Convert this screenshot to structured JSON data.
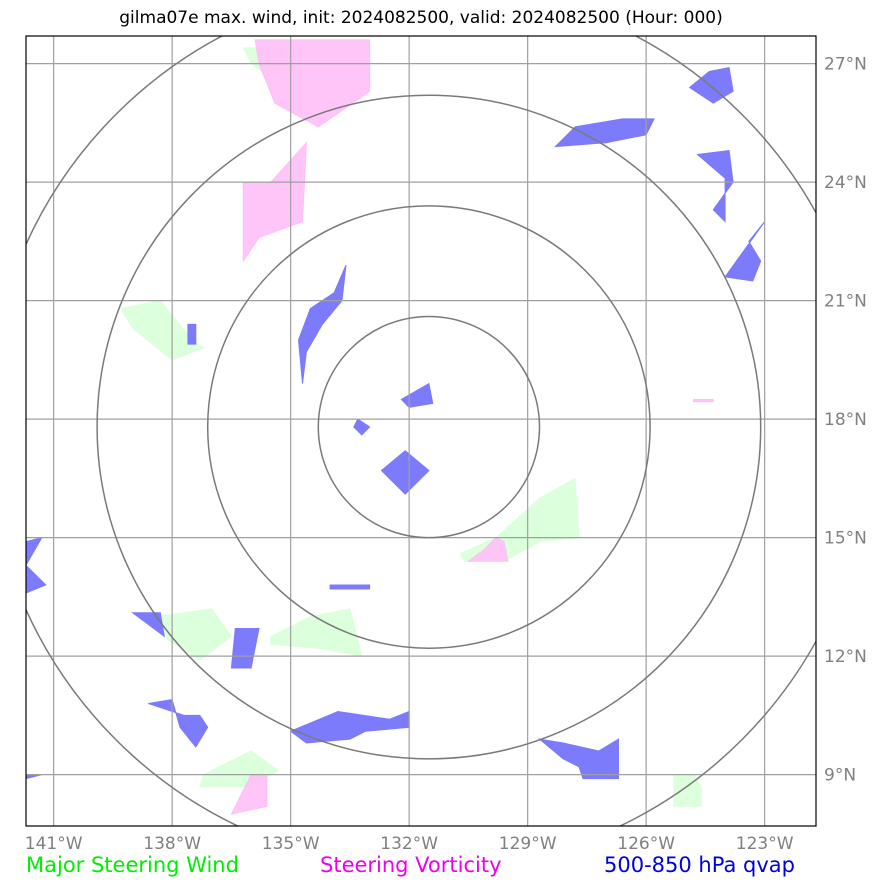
{
  "title": "gilma07e max. wind, init: 2024082500, valid: 2024082500 (Hour: 000)",
  "map": {
    "lon_range": [
      -141.7,
      -121.7
    ],
    "lat_range": [
      7.7,
      27.7
    ],
    "lon_ticks": [
      -141,
      -138,
      -135,
      -132,
      -129,
      -126,
      -123
    ],
    "lon_tick_labels": [
      "141°W",
      "138°W",
      "135°W",
      "132°W",
      "129°W",
      "126°W",
      "123°W"
    ],
    "lat_ticks": [
      9,
      12,
      15,
      18,
      21,
      24,
      27
    ],
    "lat_tick_labels": [
      "9°N",
      "12°N",
      "15°N",
      "18°N",
      "21°N",
      "24°N",
      "27°N"
    ],
    "range_ring_center": {
      "lon": -131.5,
      "lat": 17.8
    },
    "range_ring_radii_deg": [
      2.8,
      5.6,
      8.4,
      11.2
    ],
    "colors": {
      "grid": "#a0a0a0",
      "ring": "#7a7a7a",
      "steering_wind": "#dcffdc",
      "vorticity": "#ffbff8",
      "qvap": "#7b7bfb"
    },
    "layers": {
      "steering_wind": [
        [
          [
            -139.3,
            20.8
          ],
          [
            -138.3,
            21.0
          ],
          [
            -137.5,
            20.0
          ],
          [
            -137.2,
            19.8
          ],
          [
            -138.0,
            19.5
          ],
          [
            -139.0,
            20.3
          ]
        ],
        [
          [
            -130.7,
            14.6
          ],
          [
            -129.8,
            15.0
          ],
          [
            -128.7,
            16.0
          ],
          [
            -127.8,
            16.5
          ],
          [
            -127.7,
            15.0
          ],
          [
            -128.7,
            14.9
          ],
          [
            -129.6,
            14.4
          ],
          [
            -130.6,
            14.4
          ]
        ],
        [
          [
            -135.5,
            12.5
          ],
          [
            -134.5,
            13.0
          ],
          [
            -133.5,
            13.2
          ],
          [
            -133.2,
            12.0
          ],
          [
            -134.3,
            12.2
          ],
          [
            -135.5,
            12.3
          ]
        ],
        [
          [
            -137.2,
            9.0
          ],
          [
            -136.0,
            9.6
          ],
          [
            -135.3,
            9.1
          ],
          [
            -136.0,
            8.7
          ],
          [
            -137.3,
            8.7
          ]
        ],
        [
          [
            -138.4,
            13.0
          ],
          [
            -137.0,
            13.2
          ],
          [
            -136.5,
            12.5
          ],
          [
            -137.3,
            11.9
          ],
          [
            -138.1,
            12.4
          ]
        ],
        [
          [
            -125.3,
            8.2
          ],
          [
            -125.3,
            9.0
          ],
          [
            -124.8,
            9.0
          ],
          [
            -124.6,
            8.7
          ],
          [
            -124.6,
            8.2
          ]
        ],
        [
          [
            -136.2,
            27.4
          ],
          [
            -135.2,
            27.4
          ],
          [
            -135.1,
            26.9
          ],
          [
            -135.6,
            26.7
          ],
          [
            -136.0,
            27.0
          ]
        ]
      ],
      "vorticity": [
        [
          [
            -135.9,
            27.6
          ],
          [
            -135.8,
            27.0
          ],
          [
            -135.4,
            26.0
          ],
          [
            -134.3,
            25.4
          ],
          [
            -133.0,
            26.3
          ],
          [
            -133.0,
            27.6
          ]
        ],
        [
          [
            -136.2,
            24.0
          ],
          [
            -136.2,
            22.0
          ],
          [
            -135.8,
            22.6
          ],
          [
            -134.7,
            23.0
          ],
          [
            -134.6,
            25.0
          ],
          [
            -135.5,
            24.0
          ]
        ],
        [
          [
            -136.5,
            8.0
          ],
          [
            -135.6,
            8.2
          ],
          [
            -135.6,
            9.0
          ],
          [
            -136.0,
            9.0
          ]
        ],
        [
          [
            -130.5,
            14.4
          ],
          [
            -129.5,
            14.4
          ],
          [
            -129.6,
            14.9
          ],
          [
            -129.8,
            15.0
          ],
          [
            -130.1,
            14.7
          ]
        ],
        [
          [
            -124.8,
            18.5
          ],
          [
            -124.3,
            18.5
          ],
          [
            -124.3,
            18.44
          ],
          [
            -124.8,
            18.44
          ]
        ]
      ],
      "qvap": [
        [
          [
            -132.1,
            17.2
          ],
          [
            -131.5,
            16.7
          ],
          [
            -132.1,
            16.1
          ],
          [
            -132.7,
            16.7
          ]
        ],
        [
          [
            -132.2,
            18.5
          ],
          [
            -131.5,
            18.9
          ],
          [
            -131.4,
            18.4
          ],
          [
            -132.0,
            18.3
          ]
        ],
        [
          [
            -133.3,
            18.0
          ],
          [
            -133.0,
            17.8
          ],
          [
            -133.2,
            17.6
          ],
          [
            -133.4,
            17.8
          ]
        ],
        [
          [
            -134.5,
            20.8
          ],
          [
            -133.9,
            21.2
          ],
          [
            -133.6,
            21.9
          ],
          [
            -133.7,
            21.0
          ],
          [
            -134.2,
            20.4
          ],
          [
            -134.6,
            19.7
          ],
          [
            -134.7,
            18.9
          ],
          [
            -134.8,
            20.0
          ]
        ],
        [
          [
            -135.0,
            10.1
          ],
          [
            -133.8,
            10.6
          ],
          [
            -132.5,
            10.4
          ],
          [
            -132.0,
            10.6
          ],
          [
            -132.0,
            10.2
          ],
          [
            -133.1,
            10.1
          ],
          [
            -133.5,
            9.9
          ],
          [
            -134.6,
            9.8
          ]
        ],
        [
          [
            -138.6,
            10.8
          ],
          [
            -137.7,
            10.5
          ],
          [
            -137.3,
            10.5
          ],
          [
            -137.1,
            10.2
          ],
          [
            -137.4,
            9.7
          ],
          [
            -137.8,
            10.2
          ],
          [
            -138.0,
            10.9
          ]
        ],
        [
          [
            -139.0,
            13.1
          ],
          [
            -138.3,
            13.1
          ],
          [
            -138.2,
            12.5
          ],
          [
            -138.6,
            12.8
          ]
        ],
        [
          [
            -141.7,
            14.9
          ],
          [
            -141.3,
            15.0
          ],
          [
            -141.7,
            14.3
          ],
          [
            -141.2,
            13.8
          ],
          [
            -141.7,
            13.6
          ]
        ],
        [
          [
            -141.7,
            9.0
          ],
          [
            -141.3,
            9.0
          ],
          [
            -141.7,
            8.9
          ]
        ],
        [
          [
            -128.7,
            9.9
          ],
          [
            -128.1,
            9.4
          ],
          [
            -127.7,
            9.2
          ],
          [
            -127.6,
            8.9
          ],
          [
            -126.7,
            8.9
          ],
          [
            -126.7,
            9.9
          ],
          [
            -127.2,
            9.6
          ],
          [
            -128.1,
            9.8
          ]
        ],
        [
          [
            -128.3,
            24.9
          ],
          [
            -127.0,
            25.0
          ],
          [
            -126.0,
            25.2
          ],
          [
            -125.8,
            25.6
          ],
          [
            -126.6,
            25.6
          ],
          [
            -127.8,
            25.4
          ]
        ],
        [
          [
            -124.4,
            26.8
          ],
          [
            -123.9,
            26.9
          ],
          [
            -123.8,
            26.3
          ],
          [
            -124.3,
            26.0
          ],
          [
            -124.9,
            26.4
          ]
        ],
        [
          [
            -124.3,
            23.3
          ],
          [
            -123.8,
            24.0
          ],
          [
            -123.9,
            24.8
          ],
          [
            -124.7,
            24.7
          ],
          [
            -124.0,
            24.1
          ],
          [
            -124.0,
            23.0
          ]
        ],
        [
          [
            -124.0,
            21.6
          ],
          [
            -123.3,
            21.5
          ],
          [
            -123.1,
            22.0
          ],
          [
            -123.4,
            22.5
          ],
          [
            -123.0,
            23.0
          ]
        ],
        [
          [
            -137.6,
            20.4
          ],
          [
            -137.4,
            20.4
          ],
          [
            -137.4,
            19.9
          ],
          [
            -137.6,
            19.9
          ]
        ],
        [
          [
            -134.0,
            13.8
          ],
          [
            -133.0,
            13.8
          ],
          [
            -133.0,
            13.7
          ],
          [
            -134.0,
            13.7
          ]
        ],
        [
          [
            -136.4,
            12.7
          ],
          [
            -135.8,
            12.7
          ],
          [
            -136.0,
            11.7
          ],
          [
            -136.5,
            11.7
          ]
        ]
      ]
    }
  },
  "legend": {
    "steering_wind": {
      "label": "Major Steering Wind",
      "color": "#00ee00"
    },
    "vorticity": {
      "label": "Steering Vorticity",
      "color": "#ee00ee"
    },
    "qvap": {
      "label": "500-850 hPa qvap",
      "color": "#0000dd"
    }
  }
}
